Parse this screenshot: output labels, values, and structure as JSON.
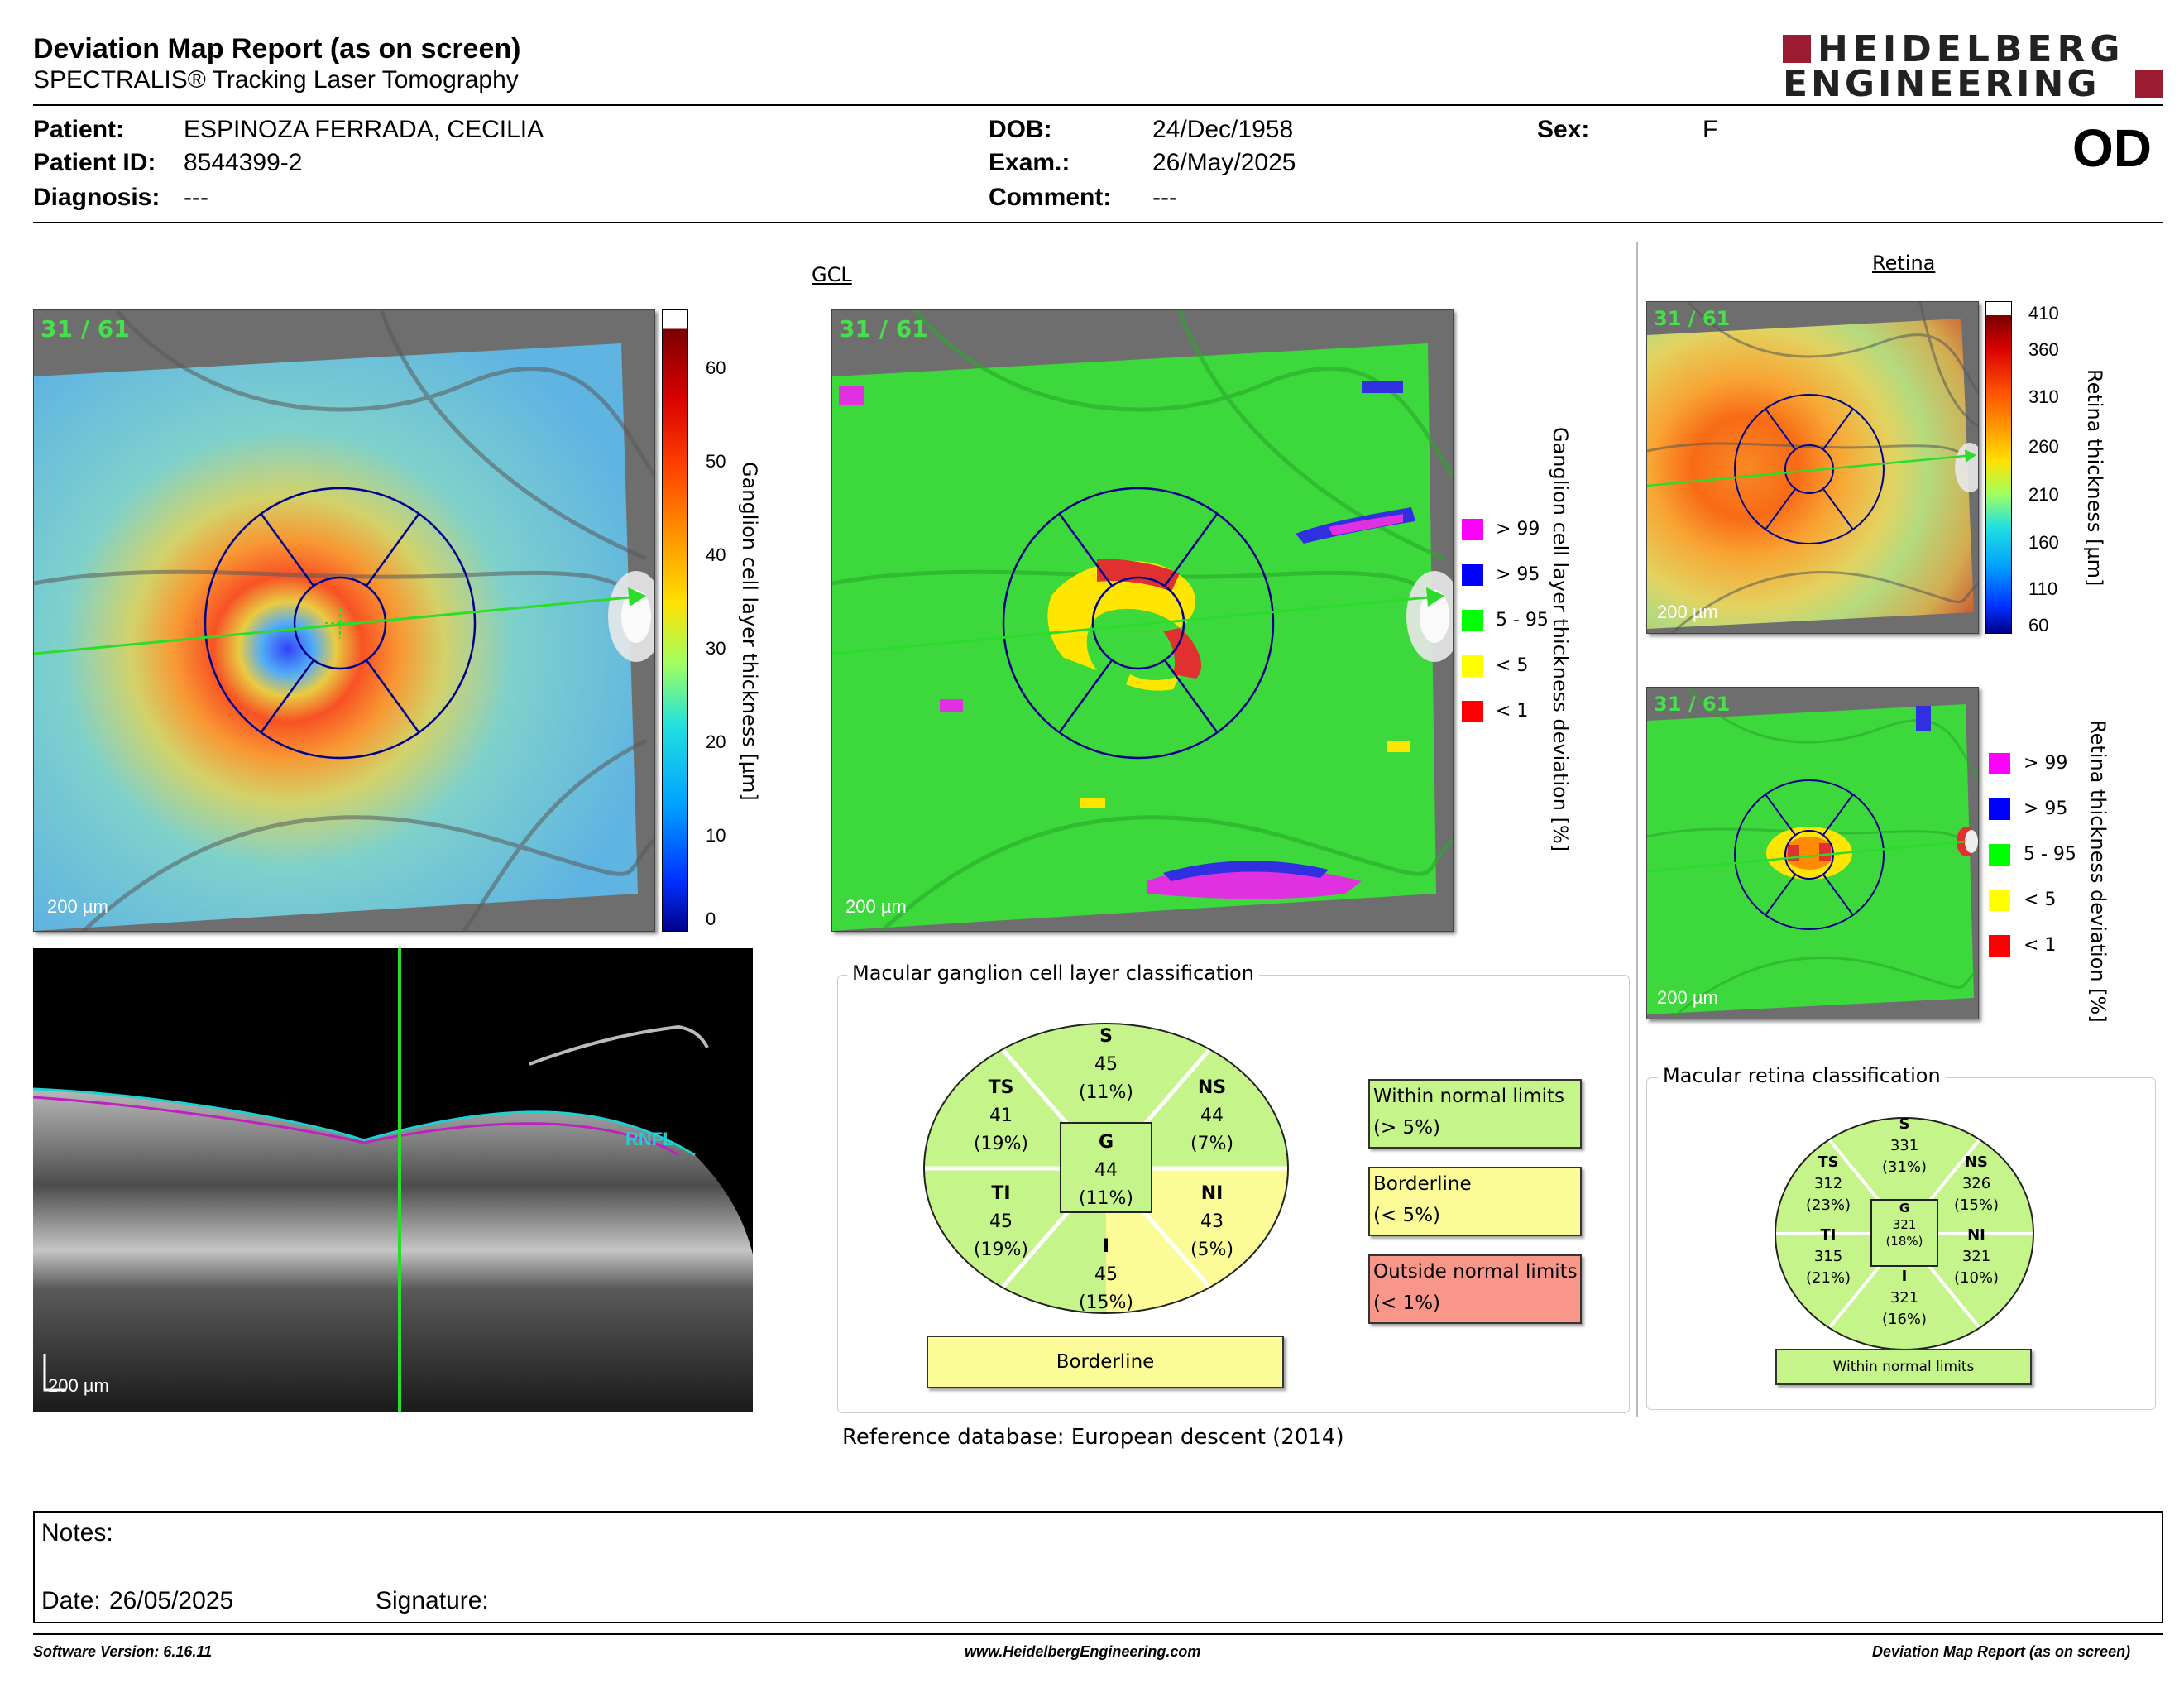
{
  "header": {
    "title": "Deviation Map Report (as on screen)",
    "subtitle": "SPECTRALIS® Tracking Laser Tomography",
    "logo_line1": "HEIDELBERG",
    "logo_line2": "ENGINEERING",
    "eye": "OD"
  },
  "patient": {
    "patient_label": "Patient:",
    "patient_value": "ESPINOZA FERRADA, CECILIA",
    "id_label": "Patient ID:",
    "id_value": "8544399-2",
    "diag_label": "Diagnosis:",
    "diag_value": "---",
    "dob_label": "DOB:",
    "dob_value": "24/Dec/1958",
    "exam_label": "Exam.:",
    "exam_value": "26/May/2025",
    "comment_label": "Comment:",
    "comment_value": "---",
    "sex_label": "Sex:",
    "sex_value": "F"
  },
  "gcl": {
    "section_label": "GCL",
    "count": "31 / 61",
    "scale": "200 µm",
    "thickness_axis_label": "Ganglion cell layer thickness [µm]",
    "thickness_ticks": [
      "60",
      "50",
      "40",
      "30",
      "20",
      "10",
      "0"
    ],
    "deviation_axis_label": "Ganglion cell layer thickness deviation [%]"
  },
  "deviation_legend": [
    {
      "label": "> 99",
      "color": "#ff00ff"
    },
    {
      "label": "> 95",
      "color": "#0000ff"
    },
    {
      "label": "5 - 95",
      "color": "#00ff00"
    },
    {
      "label": "< 5",
      "color": "#ffff00"
    },
    {
      "label": "< 1",
      "color": "#ff0000"
    }
  ],
  "retina": {
    "section_label": "Retina",
    "count": "31 / 61",
    "scale": "200 µm",
    "thickness_axis_label": "Retina thickness [µm]",
    "thickness_ticks": [
      "410",
      "360",
      "310",
      "260",
      "210",
      "160",
      "110",
      "60"
    ],
    "deviation_axis_label": "Retina thickness deviation [%]"
  },
  "bscan": {
    "layer_label": "RNFL",
    "scale": "200 µm"
  },
  "gcl_classification": {
    "title": "Macular ganglion cell layer classification",
    "sectors": {
      "S": {
        "name": "S",
        "value": "45",
        "pct": "(11%)"
      },
      "TS": {
        "name": "TS",
        "value": "41",
        "pct": "(19%)"
      },
      "NS": {
        "name": "NS",
        "value": "44",
        "pct": "(7%)"
      },
      "G": {
        "name": "G",
        "value": "44",
        "pct": "(11%)"
      },
      "TI": {
        "name": "TI",
        "value": "45",
        "pct": "(19%)"
      },
      "NI": {
        "name": "NI",
        "value": "43",
        "pct": "(5%)"
      },
      "I": {
        "name": "I",
        "value": "45",
        "pct": "(15%)"
      }
    },
    "result": "Borderline",
    "legend": [
      {
        "line1": "Within normal limits",
        "line2": "(> 5%)",
        "color": "#c5f58a"
      },
      {
        "line1": "Borderline",
        "line2": "(< 5%)",
        "color": "#fbfb98"
      },
      {
        "line1": "Outside normal limits",
        "line2": "(< 1%)",
        "color": "#f9968a"
      }
    ],
    "reference_label": "Reference database",
    "reference_value": "European descent (2014)"
  },
  "retina_classification": {
    "title": "Macular retina classification",
    "sectors": {
      "S": {
        "name": "S",
        "value": "331",
        "pct": "(31%)"
      },
      "TS": {
        "name": "TS",
        "value": "312",
        "pct": "(23%)"
      },
      "NS": {
        "name": "NS",
        "value": "326",
        "pct": "(15%)"
      },
      "G": {
        "name": "G",
        "value": "321",
        "pct": "(18%)"
      },
      "TI": {
        "name": "TI",
        "value": "315",
        "pct": "(21%)"
      },
      "NI": {
        "name": "NI",
        "value": "321",
        "pct": "(10%)"
      },
      "I": {
        "name": "I",
        "value": "321",
        "pct": "(16%)"
      }
    },
    "result": "Within normal limits"
  },
  "notes": {
    "notes_label": "Notes:",
    "date_label": "Date:",
    "date_value": "26/05/2025",
    "signature_label": "Signature:"
  },
  "footer": {
    "software": "Software Version: 6.16.11",
    "website": "www.HeidelbergEngineering.com",
    "report": "Deviation Map Report (as on screen)"
  },
  "colors": {
    "green_sector": "#c5f58a",
    "yellow_sector": "#fbfb98",
    "red_sector": "#f9968a",
    "brand_red": "#9b1b30",
    "grid_blue": "#00008b",
    "scan_green": "#2bdc2b"
  }
}
